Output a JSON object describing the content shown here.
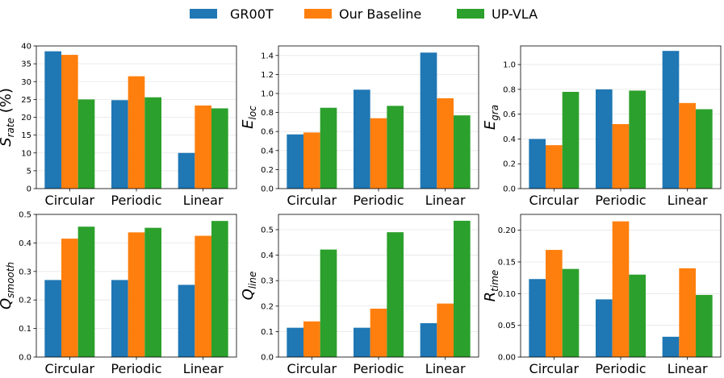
{
  "legend": [
    {
      "name": "GR00T",
      "color": "#1f77b4"
    },
    {
      "name": "Our Baseline",
      "color": "#ff7f0e"
    },
    {
      "name": "UP-VLA",
      "color": "#2ca02c"
    }
  ],
  "chart_data": [
    {
      "type": "bar",
      "ylabel": {
        "main": "S",
        "sub": "rate",
        "suffix": " (%)"
      },
      "categories": [
        "Circular",
        "Periodic",
        "Linear"
      ],
      "ylim": [
        0,
        40
      ],
      "yticks": [
        0,
        5,
        10,
        15,
        20,
        25,
        30,
        35,
        40
      ],
      "ytick_labels": [
        "0",
        "5",
        "10",
        "15",
        "20",
        "25",
        "30",
        "35",
        "40"
      ],
      "series": [
        {
          "name": "GR00T",
          "values": [
            38.5,
            24.8,
            10.0
          ]
        },
        {
          "name": "Our Baseline",
          "values": [
            37.5,
            31.5,
            23.3
          ]
        },
        {
          "name": "UP-VLA",
          "values": [
            25.0,
            25.6,
            22.5
          ]
        }
      ]
    },
    {
      "type": "bar",
      "ylabel": {
        "main": "E",
        "sub": "loc",
        "suffix": ""
      },
      "categories": [
        "Circular",
        "Periodic",
        "Linear"
      ],
      "ylim": [
        0,
        1.5
      ],
      "yticks": [
        0,
        0.2,
        0.4,
        0.6,
        0.8,
        1.0,
        1.2,
        1.4
      ],
      "ytick_labels": [
        "0.0",
        "0.2",
        "0.4",
        "0.6",
        "0.8",
        "1.0",
        "1.2",
        "1.4"
      ],
      "series": [
        {
          "name": "GR00T",
          "values": [
            0.57,
            1.04,
            1.43
          ]
        },
        {
          "name": "Our Baseline",
          "values": [
            0.59,
            0.74,
            0.95
          ]
        },
        {
          "name": "UP-VLA",
          "values": [
            0.85,
            0.87,
            0.77
          ]
        }
      ]
    },
    {
      "type": "bar",
      "ylabel": {
        "main": "E",
        "sub": "gra",
        "suffix": ""
      },
      "categories": [
        "Circular",
        "Periodic",
        "Linear"
      ],
      "ylim": [
        0,
        1.15
      ],
      "yticks": [
        0,
        0.2,
        0.4,
        0.6,
        0.8,
        1.0
      ],
      "ytick_labels": [
        "0.0",
        "0.2",
        "0.4",
        "0.6",
        "0.8",
        "1.0"
      ],
      "series": [
        {
          "name": "GR00T",
          "values": [
            0.4,
            0.8,
            1.11
          ]
        },
        {
          "name": "Our Baseline",
          "values": [
            0.35,
            0.52,
            0.69
          ]
        },
        {
          "name": "UP-VLA",
          "values": [
            0.78,
            0.79,
            0.64
          ]
        }
      ]
    },
    {
      "type": "bar",
      "ylabel": {
        "main": "Q",
        "sub": "smooth",
        "suffix": ""
      },
      "categories": [
        "Circular",
        "Periodic",
        "Linear"
      ],
      "ylim": [
        0,
        0.5
      ],
      "yticks": [
        0,
        0.1,
        0.2,
        0.3,
        0.4,
        0.5
      ],
      "ytick_labels": [
        "0.0",
        "0.1",
        "0.2",
        "0.3",
        "0.4",
        "0.5"
      ],
      "series": [
        {
          "name": "GR00T",
          "values": [
            0.27,
            0.27,
            0.253
          ]
        },
        {
          "name": "Our Baseline",
          "values": [
            0.415,
            0.437,
            0.425
          ]
        },
        {
          "name": "UP-VLA",
          "values": [
            0.457,
            0.453,
            0.477
          ]
        }
      ]
    },
    {
      "type": "bar",
      "ylabel": {
        "main": "Q",
        "sub": "line",
        "suffix": ""
      },
      "categories": [
        "Circular",
        "Periodic",
        "Linear"
      ],
      "ylim": [
        0,
        0.56
      ],
      "yticks": [
        0,
        0.1,
        0.2,
        0.3,
        0.4,
        0.5
      ],
      "ytick_labels": [
        "0.0",
        "0.1",
        "0.2",
        "0.3",
        "0.4",
        "0.5"
      ],
      "series": [
        {
          "name": "GR00T",
          "values": [
            0.115,
            0.115,
            0.133
          ]
        },
        {
          "name": "Our Baseline",
          "values": [
            0.14,
            0.19,
            0.21
          ]
        },
        {
          "name": "UP-VLA",
          "values": [
            0.422,
            0.49,
            0.535
          ]
        }
      ]
    },
    {
      "type": "bar",
      "ylabel": {
        "main": "R",
        "sub": "time",
        "suffix": ""
      },
      "categories": [
        "Circular",
        "Periodic",
        "Linear"
      ],
      "ylim": [
        0,
        0.225
      ],
      "yticks": [
        0,
        0.05,
        0.1,
        0.15,
        0.2
      ],
      "ytick_labels": [
        "0.00",
        "0.05",
        "0.10",
        "0.15",
        "0.20"
      ],
      "series": [
        {
          "name": "GR00T",
          "values": [
            0.123,
            0.091,
            0.032
          ]
        },
        {
          "name": "Our Baseline",
          "values": [
            0.169,
            0.214,
            0.14
          ]
        },
        {
          "name": "UP-VLA",
          "values": [
            0.139,
            0.13,
            0.098
          ]
        }
      ]
    }
  ]
}
